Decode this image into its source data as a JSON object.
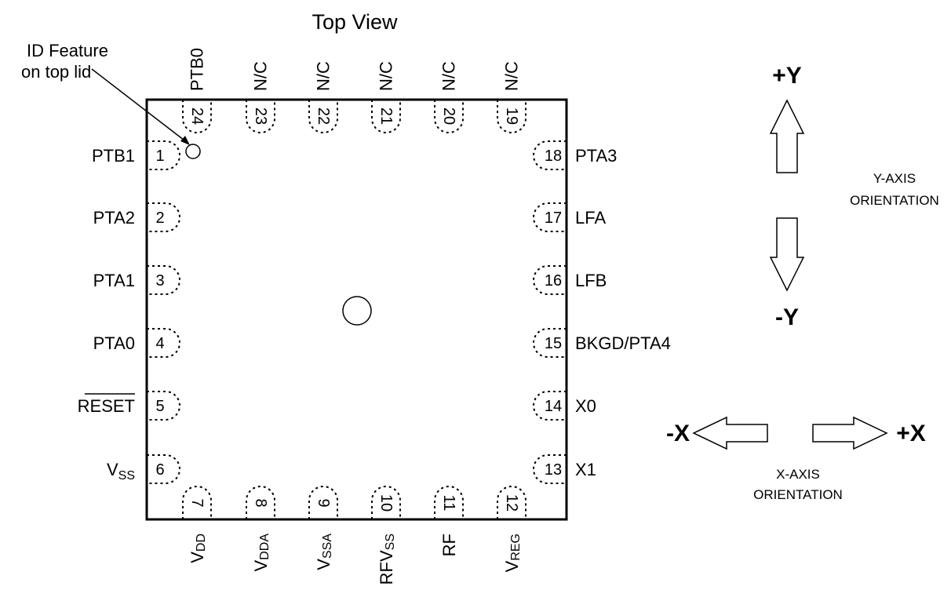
{
  "title": "Top View",
  "id_feature": {
    "line1": "ID Feature",
    "line2": "on top lid"
  },
  "left_pins": [
    {
      "num": "1",
      "label": "PTB1"
    },
    {
      "num": "2",
      "label": "PTA2"
    },
    {
      "num": "3",
      "label": "PTA1"
    },
    {
      "num": "4",
      "label": "PTA0"
    },
    {
      "num": "5",
      "label": "RESET",
      "overline": true
    },
    {
      "num": "6",
      "label": "V",
      "sub": "SS"
    }
  ],
  "right_pins": [
    {
      "num": "18",
      "label": "PTA3"
    },
    {
      "num": "17",
      "label": "LFA"
    },
    {
      "num": "16",
      "label": "LFB"
    },
    {
      "num": "15",
      "label": "BKGD/PTA4"
    },
    {
      "num": "14",
      "label": "X0"
    },
    {
      "num": "13",
      "label": "X1"
    }
  ],
  "top_pins": [
    {
      "num": "24",
      "label": "PTB0"
    },
    {
      "num": "23",
      "label": "N/C"
    },
    {
      "num": "22",
      "label": "N/C"
    },
    {
      "num": "21",
      "label": "N/C"
    },
    {
      "num": "20",
      "label": "N/C"
    },
    {
      "num": "19",
      "label": "N/C"
    }
  ],
  "bottom_pins": [
    {
      "num": "7",
      "label": "V",
      "sub": "DD"
    },
    {
      "num": "8",
      "label": "V",
      "sub": "DDA"
    },
    {
      "num": "9",
      "label": "V",
      "sub": "SSA"
    },
    {
      "num": "10",
      "label": "RFV",
      "sub": "SS"
    },
    {
      "num": "11",
      "label": "RF",
      "sub": ""
    },
    {
      "num": "12",
      "label": "V",
      "sub": "REG"
    }
  ],
  "y_axis": {
    "plus": "+Y",
    "minus": "-Y",
    "caption1": "Y-AXIS",
    "caption2": "ORIENTATION"
  },
  "x_axis": {
    "plus": "+X",
    "minus": "-X",
    "caption1": "X-AXIS",
    "caption2": "ORIENTATION"
  }
}
